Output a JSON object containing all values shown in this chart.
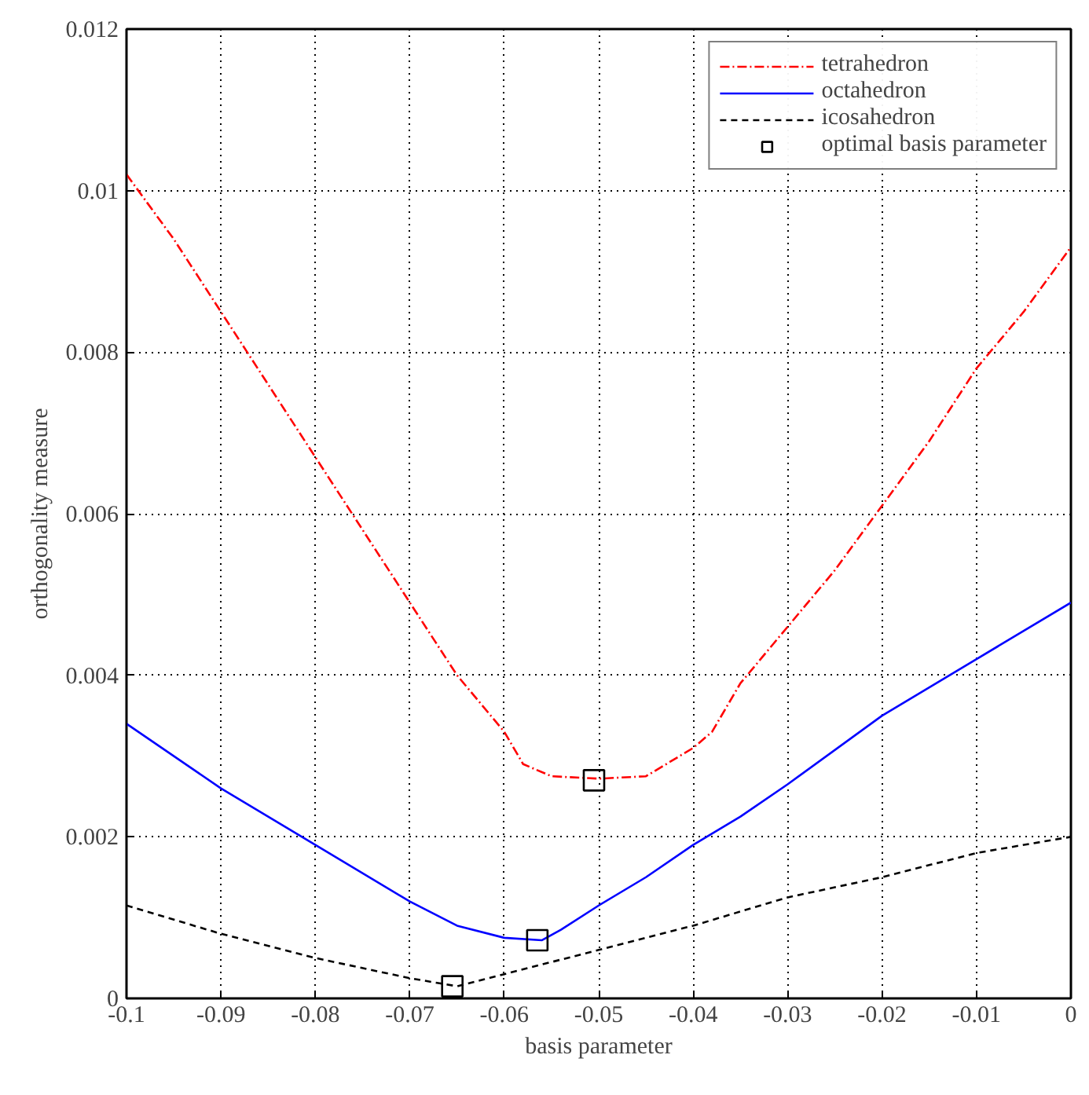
{
  "chart_data": {
    "type": "line",
    "xlabel": "basis parameter",
    "ylabel": "orthogonality measure",
    "xlim": [
      -0.1,
      0
    ],
    "ylim": [
      0,
      0.012
    ],
    "xticks": [
      -0.1,
      -0.09,
      -0.08,
      -0.07,
      -0.06,
      -0.05,
      -0.04,
      -0.03,
      -0.02,
      -0.01,
      0
    ],
    "yticks": [
      0,
      0.002,
      0.004,
      0.006,
      0.008,
      0.01,
      0.012
    ],
    "grid": true,
    "legend": "top right",
    "marker": "none",
    "series": [
      {
        "name": "tetrahedron",
        "color": "#ff0000",
        "line_style": "dashdot",
        "x": [
          -0.1,
          -0.095,
          -0.09,
          -0.085,
          -0.08,
          -0.075,
          -0.07,
          -0.065,
          -0.06,
          -0.058,
          -0.055,
          -0.05,
          -0.045,
          -0.04,
          -0.038,
          -0.035,
          -0.03,
          -0.025,
          -0.02,
          -0.015,
          -0.01,
          -0.005,
          0
        ],
        "values": [
          0.0102,
          0.0094,
          0.0085,
          0.0076,
          0.0067,
          0.0058,
          0.0049,
          0.004,
          0.0033,
          0.0029,
          0.00275,
          0.00272,
          0.00275,
          0.0031,
          0.0033,
          0.0039,
          0.0046,
          0.0053,
          0.0061,
          0.0069,
          0.0078,
          0.0085,
          0.0093
        ]
      },
      {
        "name": "octahedron",
        "color": "#0000ff",
        "line_style": "solid",
        "x": [
          -0.1,
          -0.09,
          -0.08,
          -0.07,
          -0.065,
          -0.06,
          -0.056,
          -0.054,
          -0.05,
          -0.045,
          -0.04,
          -0.035,
          -0.03,
          -0.02,
          -0.01,
          0
        ],
        "values": [
          0.0034,
          0.0026,
          0.0019,
          0.0012,
          0.0009,
          0.00075,
          0.00072,
          0.00085,
          0.00115,
          0.0015,
          0.0019,
          0.00225,
          0.00265,
          0.0035,
          0.0042,
          0.0049
        ]
      },
      {
        "name": "icosahedron",
        "color": "#000000",
        "line_style": "dashed",
        "x": [
          -0.1,
          -0.09,
          -0.08,
          -0.07,
          -0.065,
          -0.06,
          -0.05,
          -0.04,
          -0.03,
          -0.02,
          -0.01,
          0
        ],
        "values": [
          0.00115,
          0.0008,
          0.0005,
          0.00025,
          0.00015,
          0.0003,
          0.0006,
          0.0009,
          0.00125,
          0.0015,
          0.0018,
          0.002
        ]
      },
      {
        "name": "optimal basis parameter",
        "color": "#000000",
        "type": "scatter",
        "marker": "square",
        "x": [
          -0.0505,
          -0.0565,
          -0.0655
        ],
        "values": [
          0.0027,
          0.00072,
          0.00015
        ]
      }
    ]
  }
}
